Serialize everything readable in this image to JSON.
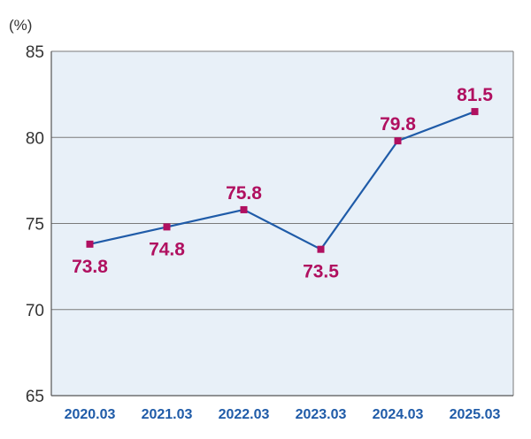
{
  "chart_data": {
    "type": "line",
    "title": "",
    "xlabel": "",
    "ylabel": "(%)",
    "categories": [
      "2020.03",
      "2021.03",
      "2022.03",
      "2023.03",
      "2024.03",
      "2025.03"
    ],
    "series": [
      {
        "values": [
          73.8,
          74.8,
          75.8,
          73.5,
          79.8,
          81.5
        ]
      }
    ],
    "data_labels": [
      "73.8",
      "74.8",
      "75.8",
      "73.5",
      "79.8",
      "81.5"
    ],
    "ylim": [
      65,
      85
    ],
    "yticks": [
      65,
      70,
      75,
      80,
      85
    ],
    "ytick_labels": [
      "65",
      "70",
      "75",
      "80",
      "85"
    ],
    "grid": true,
    "legend": "none",
    "colors": {
      "plot_background": "#e8f0f8",
      "line": "#1f5ba8",
      "marker": "#b01060",
      "data_label": "#b01060",
      "x_tick_label": "#1f5ba8",
      "grid": "#7a7a7a",
      "axis_text": "#333333"
    }
  }
}
